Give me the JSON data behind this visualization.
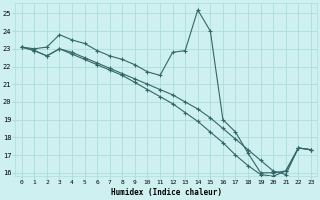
{
  "xlabel": "Humidex (Indice chaleur)",
  "bg_color": "#cff0f0",
  "line_color": "#336666",
  "grid_color": "#aadddd",
  "xlim": [
    -0.5,
    23.5
  ],
  "ylim": [
    15.8,
    25.6
  ],
  "xticks": [
    0,
    1,
    2,
    3,
    4,
    5,
    6,
    7,
    8,
    9,
    10,
    11,
    12,
    13,
    14,
    15,
    16,
    17,
    18,
    19,
    20,
    21,
    22,
    23
  ],
  "yticks": [
    16,
    17,
    18,
    19,
    20,
    21,
    22,
    23,
    24,
    25
  ],
  "line1_x": [
    0,
    1,
    2,
    3,
    4,
    5,
    6,
    7,
    8,
    9,
    10,
    11,
    12,
    13,
    14,
    15,
    16,
    17,
    18,
    19,
    20,
    21,
    22,
    23
  ],
  "line1_y": [
    23.1,
    23.0,
    23.1,
    23.8,
    23.5,
    23.3,
    22.9,
    22.6,
    22.4,
    22.1,
    21.7,
    21.5,
    22.8,
    22.9,
    25.2,
    24.0,
    19.0,
    18.3,
    17.1,
    16.0,
    16.0,
    16.1,
    17.4,
    17.3
  ],
  "line2_x": [
    0,
    1,
    2,
    3,
    4,
    5,
    6,
    7,
    8,
    9,
    10,
    11,
    12,
    13,
    14,
    15,
    16,
    17,
    18,
    19,
    20,
    21,
    22,
    23
  ],
  "line2_y": [
    23.1,
    22.9,
    22.6,
    23.0,
    22.8,
    22.5,
    22.2,
    21.9,
    21.6,
    21.3,
    21.0,
    20.7,
    20.4,
    20.0,
    19.6,
    19.1,
    18.5,
    17.9,
    17.3,
    16.7,
    16.1,
    15.9,
    17.4,
    17.3
  ],
  "line3_x": [
    0,
    1,
    2,
    3,
    4,
    5,
    6,
    7,
    8,
    9,
    10,
    11,
    12,
    13,
    14,
    15,
    16,
    17,
    18,
    19,
    20,
    21,
    22,
    23
  ],
  "line3_y": [
    23.1,
    22.9,
    22.6,
    23.0,
    22.7,
    22.4,
    22.1,
    21.8,
    21.5,
    21.1,
    20.7,
    20.3,
    19.9,
    19.4,
    18.9,
    18.3,
    17.7,
    17.0,
    16.4,
    15.9,
    15.8,
    16.1,
    17.4,
    17.3
  ]
}
